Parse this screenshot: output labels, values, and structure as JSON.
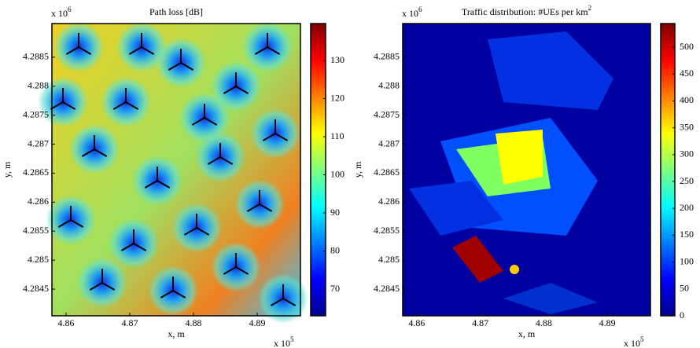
{
  "chart_data": [
    {
      "type": "heatmap",
      "title": "Path loss [dB]",
      "xlabel": "x, m",
      "ylabel": "y, m",
      "x_exponent": {
        "base": "x 10",
        "power": "5"
      },
      "y_exponent": {
        "base": "x 10",
        "power": "6"
      },
      "xlim": [
        4.85778,
        4.89679
      ],
      "xticks": [
        4.86,
        4.87,
        4.88,
        4.89
      ],
      "ylim": [
        4.28404,
        4.28908
      ],
      "yticks": [
        4.2845,
        4.285,
        4.2855,
        4.286,
        4.2865,
        4.287,
        4.2875,
        4.288,
        4.2885
      ],
      "clim": [
        63,
        139.7
      ],
      "cticks": [
        70,
        80,
        90,
        100,
        110,
        120,
        130
      ],
      "colormap": "jet"
    },
    {
      "type": "heatmap",
      "title": "Traffic distribution: #UEs per km",
      "title_power": "2",
      "xlabel": "x, m",
      "ylabel": "y, m",
      "x_exponent": {
        "base": "x 10",
        "power": "5"
      },
      "y_exponent": {
        "base": "x 10",
        "power": "6"
      },
      "xlim": [
        4.85778,
        4.89679
      ],
      "xticks": [
        4.86,
        4.87,
        4.88,
        4.89
      ],
      "ylim": [
        4.28404,
        4.28908
      ],
      "yticks": [
        4.2845,
        4.285,
        4.2855,
        4.286,
        4.2865,
        4.287,
        4.2875,
        4.288,
        4.2885
      ],
      "clim": [
        0,
        544
      ],
      "cticks": [
        0,
        50,
        100,
        150,
        200,
        250,
        300,
        350,
        400,
        450,
        500
      ],
      "colormap": "jet"
    }
  ]
}
